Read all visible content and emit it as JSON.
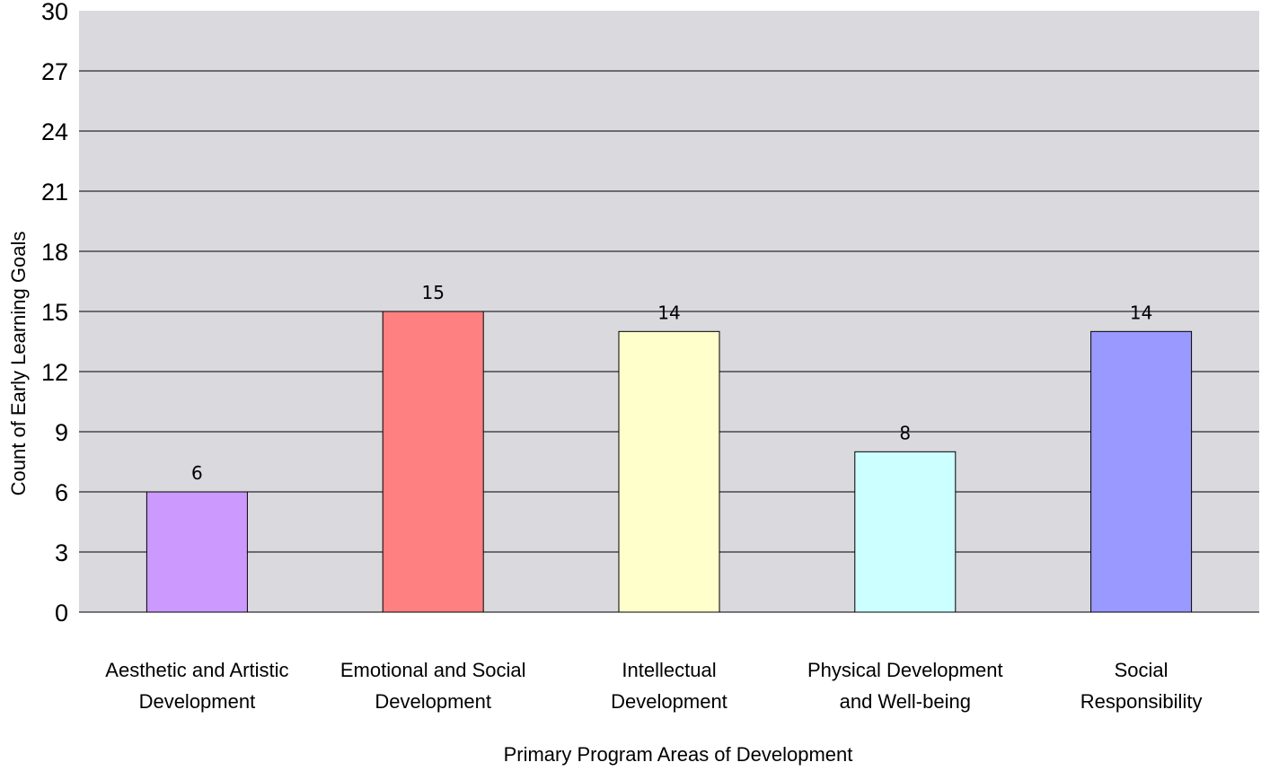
{
  "chart_data": {
    "type": "bar",
    "title": "",
    "xlabel": "Primary Program Areas of Development",
    "ylabel": "Count of Early Learning Goals",
    "ylim": [
      0,
      30
    ],
    "yticks": [
      0,
      3,
      6,
      9,
      12,
      15,
      18,
      21,
      24,
      27,
      30
    ],
    "grid": true,
    "legend": "none",
    "plot_background": "#d9d9de",
    "categories": [
      [
        "Aesthetic and Artistic",
        "Development"
      ],
      [
        "Emotional and Social",
        "Development"
      ],
      [
        "Intellectual",
        "Development"
      ],
      [
        "Physical Development",
        "and Well-being"
      ],
      [
        "Social",
        "Responsibility"
      ]
    ],
    "values": [
      6,
      15,
      14,
      8,
      14
    ],
    "colors": [
      "#cc99ff",
      "#ff8080",
      "#ffffcc",
      "#ccffff",
      "#9999ff"
    ]
  }
}
